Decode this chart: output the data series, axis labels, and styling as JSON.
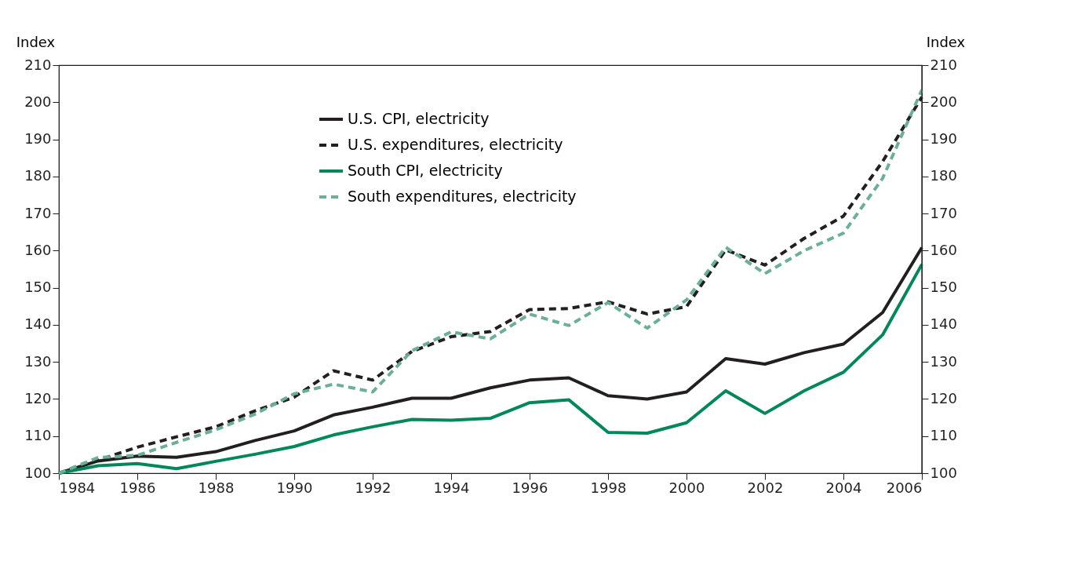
{
  "chart_data": {
    "type": "line",
    "ylabel": "Index",
    "y2label": "Index",
    "x": [
      1984,
      1985,
      1986,
      1987,
      1988,
      1989,
      1990,
      1991,
      1992,
      1993,
      1994,
      1995,
      1996,
      1997,
      1998,
      1999,
      2000,
      2001,
      2002,
      2003,
      2004,
      2005,
      2006
    ],
    "series": [
      {
        "name": "U.S. CPI, electricity",
        "color": "#231f20",
        "line_style": "solid",
        "values": [
          100,
          103.3,
          104.6,
          104.3,
          105.8,
          108.8,
          111.4,
          115.7,
          117.8,
          120.2,
          120.2,
          123,
          125.1,
          125.7,
          120.9,
          120,
          121.9,
          130.9,
          129.4,
          132.5,
          134.8,
          143.3,
          160.8
        ]
      },
      {
        "name": "U.S. expenditures, electricity",
        "color": "#231f20",
        "line_style": "dashed",
        "values": [
          100,
          103.5,
          107,
          109.8,
          112.5,
          116.8,
          120.5,
          127.6,
          125.1,
          132.8,
          136.8,
          138.2,
          144.1,
          144.4,
          146.2,
          142.9,
          144.9,
          160.2,
          156.1,
          163.3,
          169.3,
          184,
          201.4
        ]
      },
      {
        "name": "South CPI, electricity",
        "color": "#00875a",
        "line_style": "solid",
        "values": [
          100,
          102,
          102.6,
          101.2,
          103.2,
          105.1,
          107.2,
          110.3,
          112.5,
          114.5,
          114.3,
          114.8,
          119,
          119.8,
          111,
          110.8,
          113.6,
          122.2,
          116.1,
          122.2,
          127.2,
          137.3,
          156.3
        ]
      },
      {
        "name": "South expenditures, electricity",
        "color": "#6aaf96",
        "line_style": "dashed",
        "values": [
          100,
          104.2,
          104.8,
          108.3,
          111.7,
          115.9,
          121.4,
          124,
          121.9,
          133,
          138.1,
          136.2,
          142.9,
          139.8,
          146,
          139.1,
          146.7,
          160.9,
          153.8,
          160,
          164.7,
          179.5,
          203.3
        ]
      }
    ],
    "xlim": [
      1984,
      2006
    ],
    "xticks": [
      1984,
      1986,
      1988,
      1990,
      1992,
      1994,
      1996,
      1998,
      2000,
      2002,
      2004,
      2006
    ],
    "ylim": [
      100,
      210
    ],
    "yticks": [
      100,
      110,
      120,
      130,
      140,
      150,
      160,
      170,
      180,
      190,
      200,
      210
    ],
    "y2lim": [
      100,
      210
    ],
    "y2ticks": [
      100,
      110,
      120,
      130,
      140,
      150,
      160,
      170,
      180,
      190,
      200,
      210
    ],
    "grid": false,
    "legend": "top",
    "marker": "none"
  }
}
